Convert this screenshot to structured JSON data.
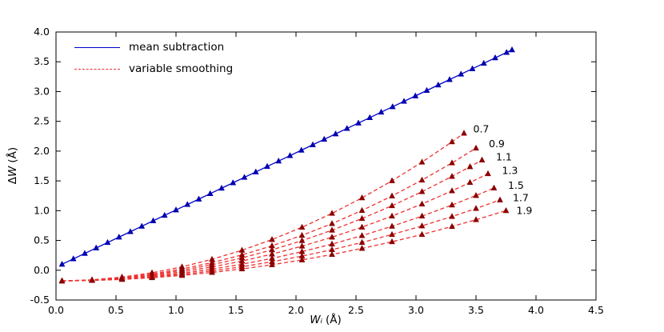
{
  "chart_data": {
    "type": "line",
    "title": "",
    "xlabel": "Wᵢ (Å)",
    "xlabel_var": "Wᵢ",
    "xlabel_unit": "(Å)",
    "ylabel": "ΔW (Å)",
    "ylabel_delta": "Δ",
    "ylabel_var": "W",
    "ylabel_unit": "(Å)",
    "xlim": [
      0.0,
      4.5
    ],
    "ylim": [
      -0.5,
      4.0
    ],
    "grid": false,
    "xticks": {
      "values": [
        0.0,
        0.5,
        1.0,
        1.5,
        2.0,
        2.5,
        3.0,
        3.5,
        4.0,
        4.5
      ],
      "labels": [
        "0.0",
        "0.5",
        "1.0",
        "1.5",
        "2.0",
        "2.5",
        "3.0",
        "3.5",
        "4.0",
        "4.5"
      ]
    },
    "yticks": {
      "values": [
        -0.5,
        0.0,
        0.5,
        1.0,
        1.5,
        2.0,
        2.5,
        3.0,
        3.5,
        4.0
      ],
      "labels": [
        "-0.5",
        "0.0",
        "0.5",
        "1.0",
        "1.5",
        "2.0",
        "2.5",
        "3.0",
        "3.5",
        "4.0"
      ]
    },
    "legend": {
      "position": "upper-left",
      "entries": [
        {
          "label": "mean subtraction",
          "color": "#0000cd",
          "style": "solid"
        },
        {
          "label": "variable smoothing",
          "color": "#f03030",
          "style": "dashed"
        }
      ]
    },
    "series": [
      {
        "name": "mean subtraction",
        "color": "#0000cd",
        "marker_color": "#0000b0",
        "marker": "triangle-up",
        "line": "solid",
        "x": [
          0.05,
          0.145,
          0.24,
          0.335,
          0.43,
          0.525,
          0.62,
          0.715,
          0.81,
          0.905,
          1.0,
          1.095,
          1.19,
          1.285,
          1.38,
          1.475,
          1.57,
          1.665,
          1.76,
          1.855,
          1.95,
          2.045,
          2.14,
          2.235,
          2.33,
          2.425,
          2.52,
          2.615,
          2.71,
          2.805,
          2.9,
          2.995,
          3.09,
          3.185,
          3.28,
          3.375,
          3.47,
          3.565,
          3.66,
          3.755,
          3.8
        ],
        "y": [
          0.1,
          0.191,
          0.282,
          0.374,
          0.465,
          0.556,
          0.647,
          0.738,
          0.83,
          0.921,
          1.012,
          1.103,
          1.194,
          1.286,
          1.377,
          1.468,
          1.559,
          1.65,
          1.742,
          1.833,
          1.924,
          2.015,
          2.106,
          2.198,
          2.289,
          2.38,
          2.471,
          2.562,
          2.654,
          2.745,
          2.836,
          2.927,
          3.018,
          3.11,
          3.201,
          3.292,
          3.383,
          3.474,
          3.566,
          3.657,
          3.7
        ]
      },
      {
        "name": "variable smoothing 0.7",
        "label": "0.7",
        "color": "#f03030",
        "marker_color": "#8b0000",
        "marker": "triangle-up",
        "line": "dashed",
        "x": [
          0.05,
          0.3,
          0.55,
          0.8,
          1.05,
          1.3,
          1.55,
          1.8,
          2.05,
          2.3,
          2.55,
          2.8,
          3.05,
          3.3,
          3.4
        ],
        "y": [
          -0.179,
          -0.161,
          -0.115,
          -0.043,
          0.056,
          0.183,
          0.335,
          0.515,
          0.721,
          0.955,
          1.215,
          1.502,
          1.815,
          2.156,
          2.3
        ]
      },
      {
        "name": "variable smoothing 0.9",
        "label": "0.9",
        "color": "#f03030",
        "marker_color": "#8b0000",
        "marker": "triangle-up",
        "line": "dashed",
        "x": [
          0.05,
          0.3,
          0.55,
          0.8,
          1.05,
          1.3,
          1.55,
          1.8,
          2.05,
          2.3,
          2.55,
          2.8,
          3.05,
          3.3,
          3.5
        ],
        "y": [
          -0.18,
          -0.164,
          -0.125,
          -0.064,
          0.021,
          0.128,
          0.257,
          0.41,
          0.585,
          0.783,
          1.003,
          1.247,
          1.513,
          1.802,
          2.05
        ]
      },
      {
        "name": "variable smoothing 1.1",
        "label": "1.1",
        "color": "#f03030",
        "marker_color": "#8b0000",
        "marker": "triangle-up",
        "line": "dashed",
        "x": [
          0.05,
          0.3,
          0.55,
          0.8,
          1.05,
          1.3,
          1.55,
          1.8,
          2.05,
          2.3,
          2.55,
          2.8,
          3.05,
          3.3,
          3.45,
          3.55
        ],
        "y": [
          -0.18,
          -0.166,
          -0.131,
          -0.077,
          -0.002,
          0.092,
          0.207,
          0.342,
          0.497,
          0.672,
          0.868,
          1.083,
          1.319,
          1.575,
          1.738,
          1.85
        ]
      },
      {
        "name": "variable smoothing 1.3",
        "label": "1.3",
        "color": "#f03030",
        "marker_color": "#8b0000",
        "marker": "triangle-up",
        "line": "dashed",
        "x": [
          0.05,
          0.3,
          0.55,
          0.8,
          1.05,
          1.3,
          1.55,
          1.8,
          2.05,
          2.3,
          2.55,
          2.8,
          3.05,
          3.3,
          3.45,
          3.6
        ],
        "y": [
          -0.18,
          -0.168,
          -0.138,
          -0.091,
          -0.027,
          0.055,
          0.154,
          0.27,
          0.404,
          0.555,
          0.723,
          0.909,
          1.112,
          1.333,
          1.473,
          1.62
        ]
      },
      {
        "name": "variable smoothing 1.5",
        "label": "1.5",
        "color": "#f03030",
        "marker_color": "#8b0000",
        "marker": "triangle-up",
        "line": "dashed",
        "x": [
          0.05,
          0.3,
          0.55,
          0.8,
          1.05,
          1.3,
          1.55,
          1.8,
          2.05,
          2.3,
          2.55,
          2.8,
          3.05,
          3.3,
          3.5,
          3.65
        ],
        "y": [
          -0.18,
          -0.169,
          -0.145,
          -0.105,
          -0.051,
          0.018,
          0.101,
          0.199,
          0.312,
          0.439,
          0.581,
          0.738,
          0.909,
          1.095,
          1.254,
          1.38
        ]
      },
      {
        "name": "variable smoothing 1.7",
        "label": "1.7",
        "color": "#f03030",
        "marker_color": "#8b0000",
        "marker": "triangle-up",
        "line": "dashed",
        "x": [
          0.05,
          0.3,
          0.55,
          0.8,
          1.05,
          1.3,
          1.55,
          1.8,
          2.05,
          2.3,
          2.55,
          2.8,
          3.05,
          3.3,
          3.5,
          3.7
        ],
        "y": [
          -0.18,
          -0.171,
          -0.15,
          -0.116,
          -0.071,
          -0.012,
          0.059,
          0.142,
          0.237,
          0.345,
          0.466,
          0.599,
          0.744,
          0.902,
          1.036,
          1.18
        ]
      },
      {
        "name": "variable smoothing 1.9",
        "label": "1.9",
        "color": "#f03030",
        "marker_color": "#8b0000",
        "marker": "triangle-up",
        "line": "dashed",
        "x": [
          0.05,
          0.3,
          0.55,
          0.8,
          1.05,
          1.3,
          1.55,
          1.8,
          2.05,
          2.3,
          2.55,
          2.8,
          3.05,
          3.3,
          3.5,
          3.75
        ],
        "y": [
          -0.18,
          -0.172,
          -0.155,
          -0.126,
          -0.088,
          -0.038,
          0.022,
          0.092,
          0.173,
          0.264,
          0.366,
          0.478,
          0.6,
          0.734,
          0.848,
          1.0
        ]
      }
    ],
    "annotations": [
      {
        "text": "0.7",
        "x": 3.45,
        "y": 2.37
      },
      {
        "text": "0.9",
        "x": 3.58,
        "y": 2.12
      },
      {
        "text": "1.1",
        "x": 3.64,
        "y": 1.9
      },
      {
        "text": "1.3",
        "x": 3.69,
        "y": 1.67
      },
      {
        "text": "1.5",
        "x": 3.74,
        "y": 1.42
      },
      {
        "text": "1.7",
        "x": 3.78,
        "y": 1.21
      },
      {
        "text": "1.9",
        "x": 3.81,
        "y": 1.0
      }
    ]
  }
}
